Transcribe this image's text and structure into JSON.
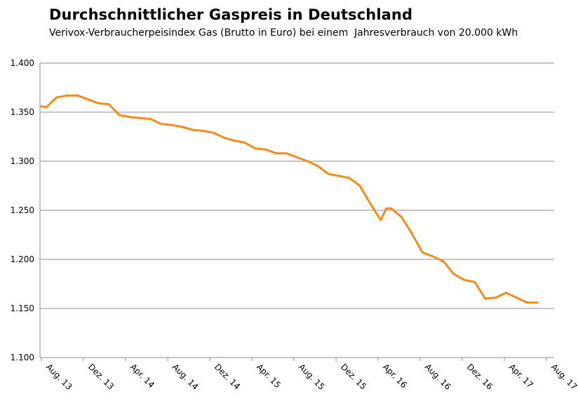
{
  "chart_data": {
    "type": "line",
    "title": "Durchschnittlicher Gaspreis in Deutschland",
    "subtitle": "Verivox-Verbraucherpeisindex Gas (Brutto in Euro) bei einem  Jahresverbrauch von 20.000 kWh",
    "xlabel": "",
    "ylabel": "",
    "ylim": [
      1100,
      1400
    ],
    "y_ticks": [
      "1.100",
      "1.150",
      "1.200",
      "1.250",
      "1.300",
      "1.350",
      "1.400"
    ],
    "y_tick_values": [
      1100,
      1150,
      1200,
      1250,
      1300,
      1350,
      1400
    ],
    "x_ticks": [
      "Aug. 13",
      "Dez. 13",
      "Apr. 14",
      "Aug. 14",
      "Dez. 14",
      "Apr. 15",
      "Aug. 15",
      "Dez. 15",
      "Apr. 16",
      "Aug. 16",
      "Dez. 16",
      "Apr. 17",
      "Aug. 17"
    ],
    "grid": "horizontal",
    "legend": "none",
    "color": "#f28c1c",
    "series": [
      {
        "x": [
          "2013-08-01",
          "2013-08-15",
          "2013-09-15",
          "2013-10-15",
          "2013-11-15",
          "2013-12-15",
          "2014-01-15",
          "2014-02-15",
          "2014-03-15",
          "2014-04-15",
          "2014-05-15",
          "2014-06-15",
          "2014-07-15",
          "2014-08-15",
          "2014-09-15",
          "2014-10-15",
          "2014-11-15",
          "2014-12-15",
          "2015-01-15",
          "2015-02-15",
          "2015-03-15",
          "2015-04-15",
          "2015-05-15",
          "2015-06-15",
          "2015-07-15",
          "2015-08-15",
          "2015-09-15",
          "2015-10-15",
          "2015-11-15",
          "2015-12-15",
          "2016-01-15",
          "2016-02-15",
          "2016-03-15",
          "2016-04-15",
          "2016-05-01",
          "2016-05-15",
          "2016-06-15",
          "2016-07-15",
          "2016-08-15",
          "2016-09-15",
          "2016-10-15",
          "2016-11-15",
          "2016-12-15",
          "2017-01-15",
          "2017-02-15",
          "2017-03-15",
          "2017-04-15",
          "2017-05-15",
          "2017-06-15",
          "2017-07-15"
        ],
        "values": [
          1356,
          1355,
          1365,
          1367,
          1367,
          1363,
          1359,
          1358,
          1347,
          1345,
          1344,
          1343,
          1338,
          1337,
          1335,
          1332,
          1331,
          1329,
          1324,
          1321,
          1319,
          1313,
          1312,
          1308,
          1308,
          1304,
          1300,
          1295,
          1287,
          1285,
          1283,
          1275,
          1257,
          1240,
          1252,
          1252,
          1243,
          1226,
          1207,
          1203,
          1198,
          1185,
          1179,
          1177,
          1160,
          1161,
          1166,
          1161,
          1156,
          1156
        ]
      }
    ]
  }
}
